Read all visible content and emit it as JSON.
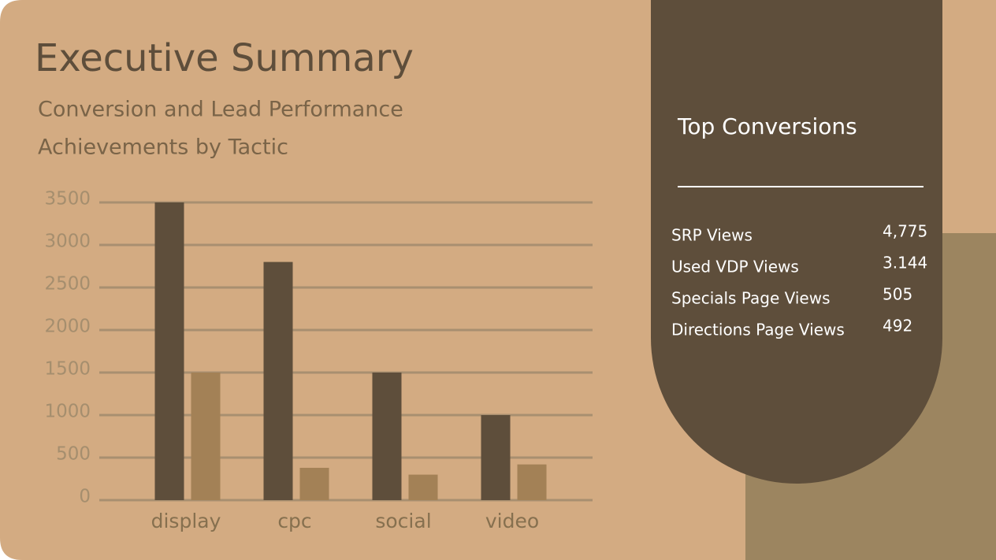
{
  "header": {
    "title": "Executive Summary",
    "subtitle": "Conversion and Lead Performance"
  },
  "chart_data": {
    "type": "bar",
    "title": "Achievements by Tactic",
    "categories": [
      "display",
      "cpc",
      "social",
      "video"
    ],
    "series": [
      {
        "color": "#5e4e3b",
        "values": [
          3500,
          2800,
          1500,
          1000
        ]
      },
      {
        "color": "#a38156",
        "values": [
          1500,
          380,
          300,
          420
        ]
      }
    ],
    "ylim": [
      0,
      3500
    ],
    "yticks": [
      0,
      500,
      1000,
      1500,
      2000,
      2500,
      3000,
      3500
    ],
    "grid": true
  },
  "panel": {
    "title": "Top Conversions",
    "rows": [
      [
        "SRP Views",
        "4,775"
      ],
      [
        "Used VDP Views",
        "3.144"
      ],
      [
        "Specials Page Views",
        "505"
      ],
      [
        "Directions Page Views",
        "492"
      ]
    ]
  }
}
